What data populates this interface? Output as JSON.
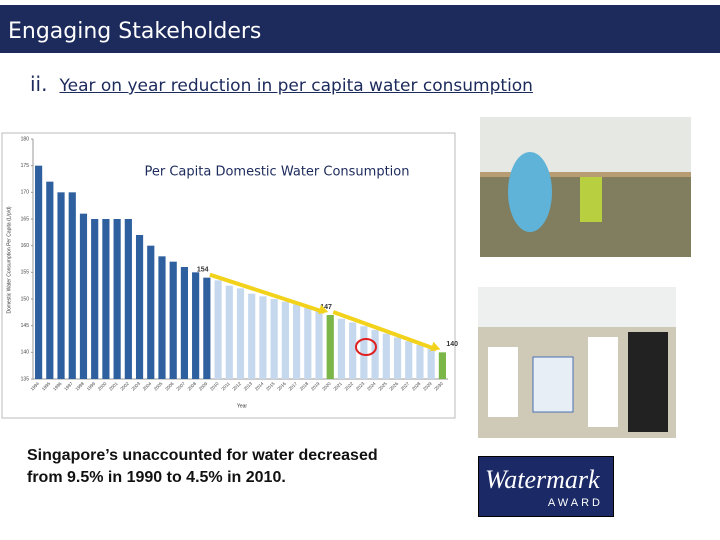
{
  "header": {
    "title": "Engaging Stakeholders"
  },
  "subtitle": {
    "number": "ii.",
    "text": "Year on year reduction in per capita water consumption"
  },
  "chart_data": {
    "type": "bar",
    "title": "Per Capita Domestic Water Consumption",
    "y_label": "Domestic Water Consumption Per Capita (L/p/d)",
    "x_label": "Year",
    "categories": [
      "1994",
      "1995",
      "1996",
      "1997",
      "1998",
      "1999",
      "2000",
      "2001",
      "2002",
      "2003",
      "2004",
      "2005",
      "2006",
      "2007",
      "2008",
      "2009",
      "2010",
      "2011",
      "2012",
      "2013",
      "2014",
      "2015",
      "2016",
      "2017",
      "2018",
      "2019",
      "2020",
      "2021",
      "2022",
      "2023",
      "2024",
      "2025",
      "2026",
      "2027",
      "2028",
      "2029",
      "2030"
    ],
    "values": [
      175,
      172,
      170,
      170,
      166,
      165,
      165,
      165,
      165,
      162,
      160,
      158,
      157,
      156,
      155,
      154,
      153.5,
      152.5,
      152,
      151,
      150.5,
      150,
      149.5,
      149,
      148.5,
      148,
      147,
      146.3,
      145.6,
      144.9,
      144.2,
      143.5,
      142.8,
      142.1,
      141.4,
      140.7,
      140
    ],
    "colors": [
      "#2e5f9e",
      "#2e5f9e",
      "#2e5f9e",
      "#2e5f9e",
      "#2e5f9e",
      "#2e5f9e",
      "#2e5f9e",
      "#2e5f9e",
      "#2e5f9e",
      "#2e5f9e",
      "#2e5f9e",
      "#2e5f9e",
      "#2e5f9e",
      "#2e5f9e",
      "#2e5f9e",
      "#2e5f9e",
      "#c6d8ee",
      "#c6d8ee",
      "#c6d8ee",
      "#c6d8ee",
      "#c6d8ee",
      "#c6d8ee",
      "#c6d8ee",
      "#c6d8ee",
      "#c6d8ee",
      "#c6d8ee",
      "#7ab648",
      "#c6d8ee",
      "#c6d8ee",
      "#c6d8ee",
      "#c6d8ee",
      "#c6d8ee",
      "#c6d8ee",
      "#c6d8ee",
      "#c6d8ee",
      "#c6d8ee",
      "#7ab648"
    ],
    "annotations": [
      {
        "category": "2009",
        "value": 154
      },
      {
        "category": "2020",
        "value": 147
      },
      {
        "category": "2030",
        "value": 140
      }
    ],
    "ylim": [
      135,
      180
    ],
    "yticks": [
      135,
      140,
      145,
      150,
      155,
      160,
      165,
      170,
      175,
      180
    ],
    "grid": false
  },
  "caption": [
    "Singapore’s unaccounted for water decreased",
    "from 9.5% in 1990 to 4.5% in 2010."
  ],
  "award": {
    "name": "Watermark",
    "label": "AWARD"
  }
}
